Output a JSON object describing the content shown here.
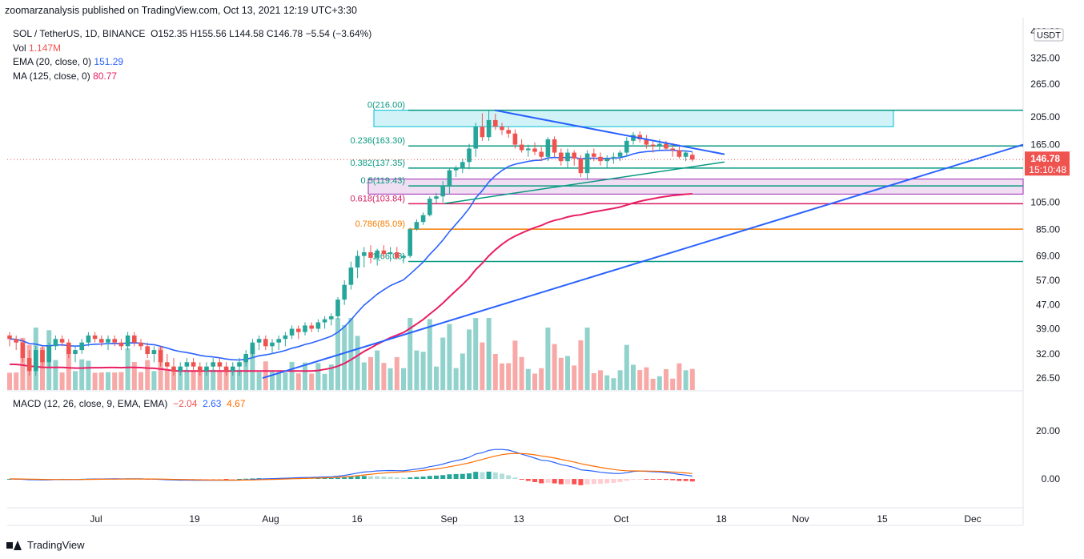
{
  "header": {
    "publisher": "zoomarzanalysis published on TradingView.com, Oct 13, 2021 12:19 UTC+3:30"
  },
  "legend": {
    "symbol": "SOL / TetherUS, 1D, BINANCE",
    "ohlc": "O152.35  H155.56  L144.58  C146.78  −5.54 (−3.64%)",
    "vol_label": "Vol",
    "vol_value": "1.147M",
    "ema_label": "EMA (20, close, 0)",
    "ema_value": "151.29",
    "ma_label": "MA (125, close, 0)",
    "ma_value": "80.77",
    "macd_label": "MACD (12, 26, close, 9, EMA, EMA)",
    "macd_hist": "−2.04",
    "macd_line": "2.63",
    "macd_signal": "4.67"
  },
  "price_axis": {
    "currency": "USDT",
    "ticks": [
      "400.00",
      "325.00",
      "265.00",
      "205.00",
      "165.00",
      "105.00",
      "85.00",
      "69.00",
      "57.00",
      "47.00",
      "39.00",
      "32.00",
      "26.50"
    ],
    "last_price": "146.78",
    "countdown": "15:10:48"
  },
  "macd_axis": {
    "ticks": [
      "20.00",
      "0.00"
    ]
  },
  "time_axis": {
    "ticks": [
      "Jul",
      "19",
      "Aug",
      "16",
      "Sep",
      "13",
      "Oct",
      "18",
      "Nov",
      "15",
      "Dec"
    ]
  },
  "fibonacci": {
    "levels": [
      {
        "label": "0(216.00)",
        "color": "#089981"
      },
      {
        "label": "0.236(163.30)",
        "color": "#089981"
      },
      {
        "label": "0.382(137.35)",
        "color": "#089981"
      },
      {
        "label": "0.5(119.43)",
        "color": "#089981"
      },
      {
        "label": "0.618(103.84)",
        "color": "#d81b60"
      },
      {
        "label": "0.786(85.09)",
        "color": "#f57c00"
      },
      {
        "label": "1(66.03)",
        "color": "#089981"
      }
    ]
  },
  "colors": {
    "up": "#26a69a",
    "down": "#ef5350",
    "ema": "#2962ff",
    "ma": "#e91e63",
    "macd": "#2962ff",
    "signal": "#ff6d00",
    "last_price_bg": "#ef5350"
  },
  "chart_data": {
    "type": "candlestick",
    "symbol": "SOL / TetherUS",
    "interval": "1D",
    "last_bar": {
      "open": 152.35,
      "high": 155.56,
      "low": 144.58,
      "close": 146.78
    },
    "candles": [
      [
        37,
        38,
        34,
        36
      ],
      [
        36,
        37,
        33,
        35
      ],
      [
        35,
        36,
        30,
        31
      ],
      [
        31,
        33,
        27,
        28
      ],
      [
        28,
        34,
        27,
        33
      ],
      [
        33,
        34,
        29,
        30
      ],
      [
        30,
        35,
        29,
        34
      ],
      [
        34,
        37,
        33,
        36
      ],
      [
        36,
        37,
        34,
        35
      ],
      [
        35,
        36,
        31,
        32
      ],
      [
        32,
        34,
        30,
        33
      ],
      [
        33,
        36,
        32,
        35
      ],
      [
        35,
        38,
        34,
        37
      ],
      [
        37,
        38,
        35,
        36
      ],
      [
        36,
        37,
        34,
        35
      ],
      [
        35,
        37,
        33,
        36
      ],
      [
        36,
        37,
        34,
        35
      ],
      [
        35,
        36,
        33,
        34
      ],
      [
        34,
        38,
        33,
        37
      ],
      [
        37,
        38,
        34,
        35
      ],
      [
        35,
        36,
        33,
        34
      ],
      [
        34,
        35,
        31,
        32
      ],
      [
        32,
        34,
        30,
        33
      ],
      [
        33,
        34,
        29,
        30
      ],
      [
        30,
        32,
        28,
        29
      ],
      [
        29,
        31,
        27,
        28
      ],
      [
        28,
        30,
        27,
        29
      ],
      [
        29,
        31,
        28,
        30
      ],
      [
        30,
        31,
        28,
        29
      ],
      [
        29,
        30,
        27,
        28
      ],
      [
        28,
        30,
        27,
        29
      ],
      [
        29,
        31,
        28,
        30
      ],
      [
        30,
        31,
        28,
        29
      ],
      [
        29,
        30,
        27,
        28
      ],
      [
        28,
        30,
        27,
        29
      ],
      [
        29,
        31,
        27,
        30
      ],
      [
        30,
        33,
        29,
        32
      ],
      [
        32,
        36,
        31,
        35
      ],
      [
        35,
        37,
        33,
        36
      ],
      [
        36,
        37,
        33,
        34
      ],
      [
        34,
        36,
        32,
        35
      ],
      [
        35,
        37,
        33,
        36
      ],
      [
        36,
        38,
        34,
        37
      ],
      [
        37,
        40,
        36,
        39
      ],
      [
        39,
        40,
        36,
        38
      ],
      [
        38,
        41,
        37,
        40
      ],
      [
        40,
        41,
        38,
        39
      ],
      [
        39,
        42,
        38,
        41
      ],
      [
        41,
        43,
        39,
        42
      ],
      [
        42,
        44,
        40,
        43
      ],
      [
        43,
        50,
        42,
        49
      ],
      [
        49,
        57,
        47,
        55
      ],
      [
        55,
        66,
        53,
        63
      ],
      [
        63,
        72,
        58,
        69
      ],
      [
        69,
        74,
        63,
        71
      ],
      [
        71,
        75,
        65,
        68
      ],
      [
        68,
        73,
        64,
        72
      ],
      [
        72,
        75,
        68,
        70
      ],
      [
        70,
        74,
        66,
        71
      ],
      [
        71,
        74,
        67,
        68
      ],
      [
        68,
        70,
        65,
        69
      ],
      [
        69,
        86,
        68,
        85
      ],
      [
        85,
        92,
        84,
        90
      ],
      [
        90,
        97,
        88,
        95
      ],
      [
        95,
        110,
        94,
        108
      ],
      [
        108,
        113,
        104,
        110
      ],
      [
        110,
        124,
        105,
        120
      ],
      [
        120,
        137,
        112,
        135
      ],
      [
        135,
        140,
        128,
        137
      ],
      [
        137,
        148,
        132,
        144
      ],
      [
        144,
        166,
        136,
        160
      ],
      [
        160,
        196,
        150,
        190
      ],
      [
        190,
        211,
        170,
        175
      ],
      [
        175,
        216,
        170,
        200
      ],
      [
        200,
        210,
        185,
        190
      ],
      [
        190,
        196,
        178,
        185
      ],
      [
        185,
        190,
        174,
        180
      ],
      [
        180,
        186,
        160,
        165
      ],
      [
        165,
        172,
        155,
        158
      ],
      [
        158,
        165,
        150,
        160
      ],
      [
        160,
        168,
        152,
        156
      ],
      [
        156,
        162,
        145,
        150
      ],
      [
        150,
        175,
        145,
        172
      ],
      [
        172,
        176,
        150,
        155
      ],
      [
        155,
        160,
        140,
        145
      ],
      [
        145,
        160,
        138,
        155
      ],
      [
        155,
        158,
        140,
        148
      ],
      [
        148,
        152,
        128,
        132
      ],
      [
        132,
        158,
        125,
        154
      ],
      [
        154,
        160,
        145,
        150
      ],
      [
        150,
        155,
        140,
        145
      ],
      [
        145,
        152,
        138,
        148
      ],
      [
        148,
        155,
        142,
        150
      ],
      [
        150,
        158,
        145,
        155
      ],
      [
        155,
        175,
        150,
        170
      ],
      [
        170,
        182,
        165,
        178
      ],
      [
        178,
        183,
        168,
        172
      ],
      [
        172,
        178,
        160,
        165
      ],
      [
        165,
        170,
        155,
        163
      ],
      [
        163,
        172,
        158,
        166
      ],
      [
        166,
        170,
        158,
        160
      ],
      [
        160,
        167,
        150,
        158
      ],
      [
        158,
        165,
        148,
        150
      ],
      [
        150,
        158,
        145,
        155
      ],
      [
        152.35,
        155.56,
        144.58,
        146.78
      ]
    ],
    "ema20_last": 151.29,
    "ma125_last": 80.77,
    "volume_last": "1.147M",
    "macd": {
      "macd_last": 2.63,
      "signal_last": 4.67,
      "histogram_last": -2.04
    },
    "fib_levels": [
      216.0,
      163.3,
      137.35,
      119.43,
      103.84,
      85.09,
      66.03
    ],
    "ylim": [
      26.5,
      400
    ],
    "y_scale": "log",
    "x_range": [
      "Jul",
      "Dec"
    ]
  }
}
